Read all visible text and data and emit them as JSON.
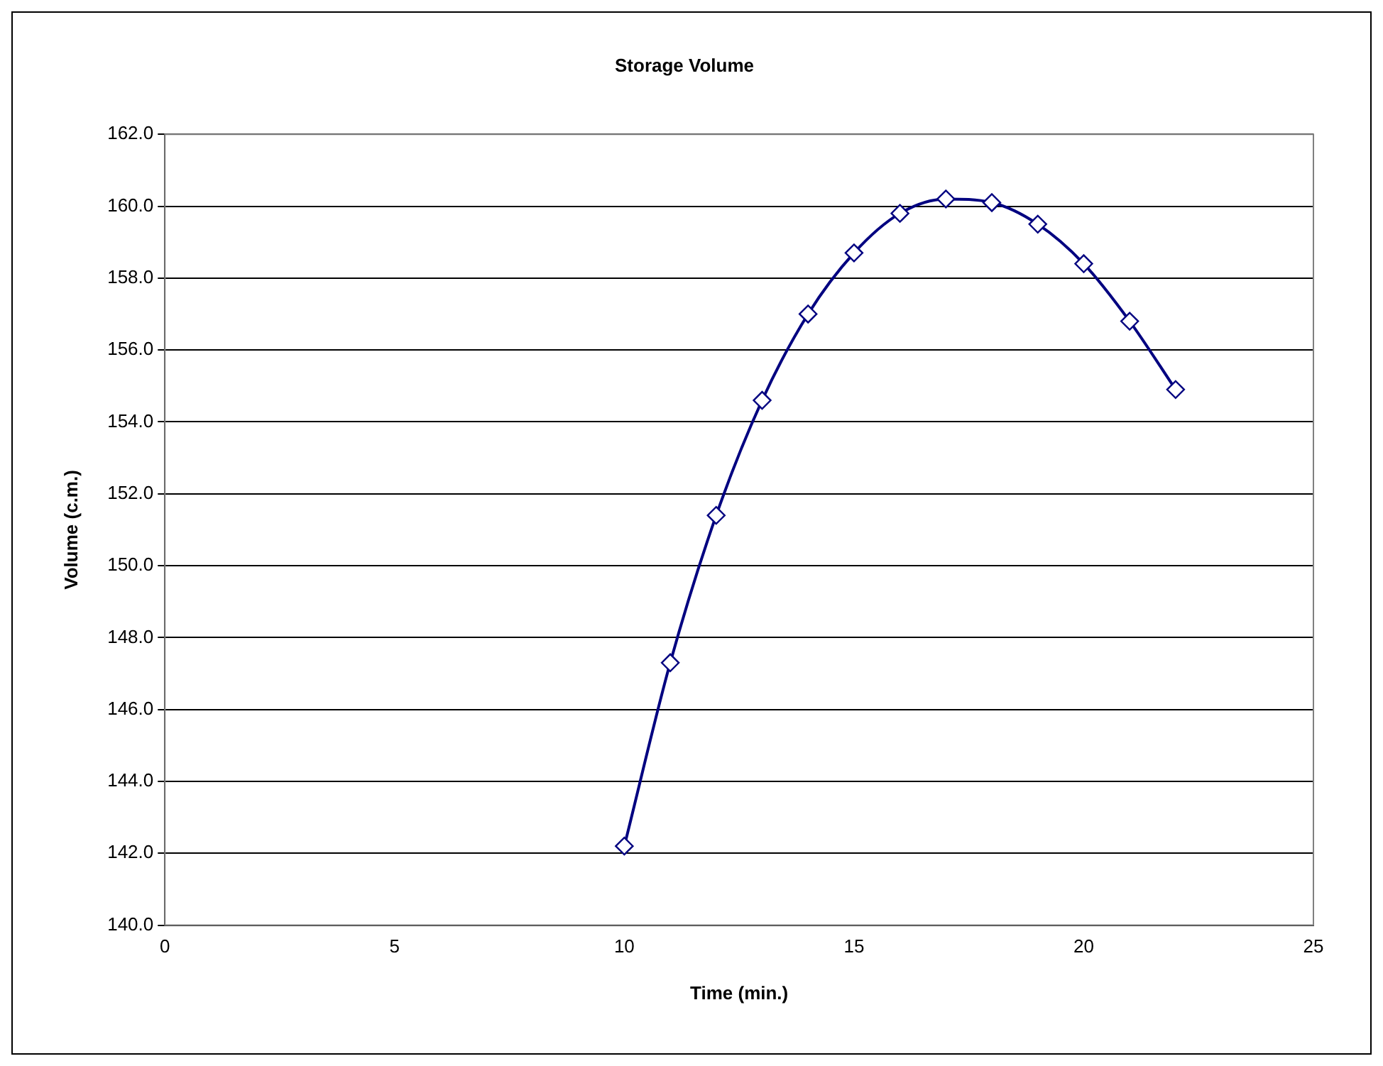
{
  "chart_data": {
    "type": "line",
    "title": "Storage Volume",
    "xlabel": "Time (min.)",
    "ylabel": "Volume (c.m.)",
    "x": [
      10,
      11,
      12,
      13,
      14,
      15,
      16,
      17,
      18,
      19,
      20,
      21,
      22
    ],
    "series": [
      {
        "color": "#000080",
        "values": [
          142.2,
          147.3,
          151.4,
          154.6,
          157.0,
          158.7,
          159.8,
          160.2,
          160.1,
          159.5,
          158.4,
          156.8,
          154.9
        ]
      }
    ],
    "xlim": [
      0,
      25
    ],
    "xticks": [
      0,
      5,
      10,
      15,
      20,
      25
    ],
    "ylim": [
      140,
      162
    ],
    "yticks": [
      {
        "value": 140,
        "label": "140.0"
      },
      {
        "value": 142,
        "label": "142.0"
      },
      {
        "value": 144,
        "label": "144.0"
      },
      {
        "value": 146,
        "label": "146.0"
      },
      {
        "value": 148,
        "label": "148.0"
      },
      {
        "value": 150,
        "label": "150.0"
      },
      {
        "value": 152,
        "label": "152.0"
      },
      {
        "value": 154,
        "label": "154.0"
      },
      {
        "value": 156,
        "label": "156.0"
      },
      {
        "value": 158,
        "label": "158.0"
      },
      {
        "value": 160,
        "label": "160.0"
      },
      {
        "value": 162,
        "label": "162.0"
      }
    ],
    "grid": "y",
    "marker": "diamond",
    "line_style": "solid",
    "legend": false
  }
}
